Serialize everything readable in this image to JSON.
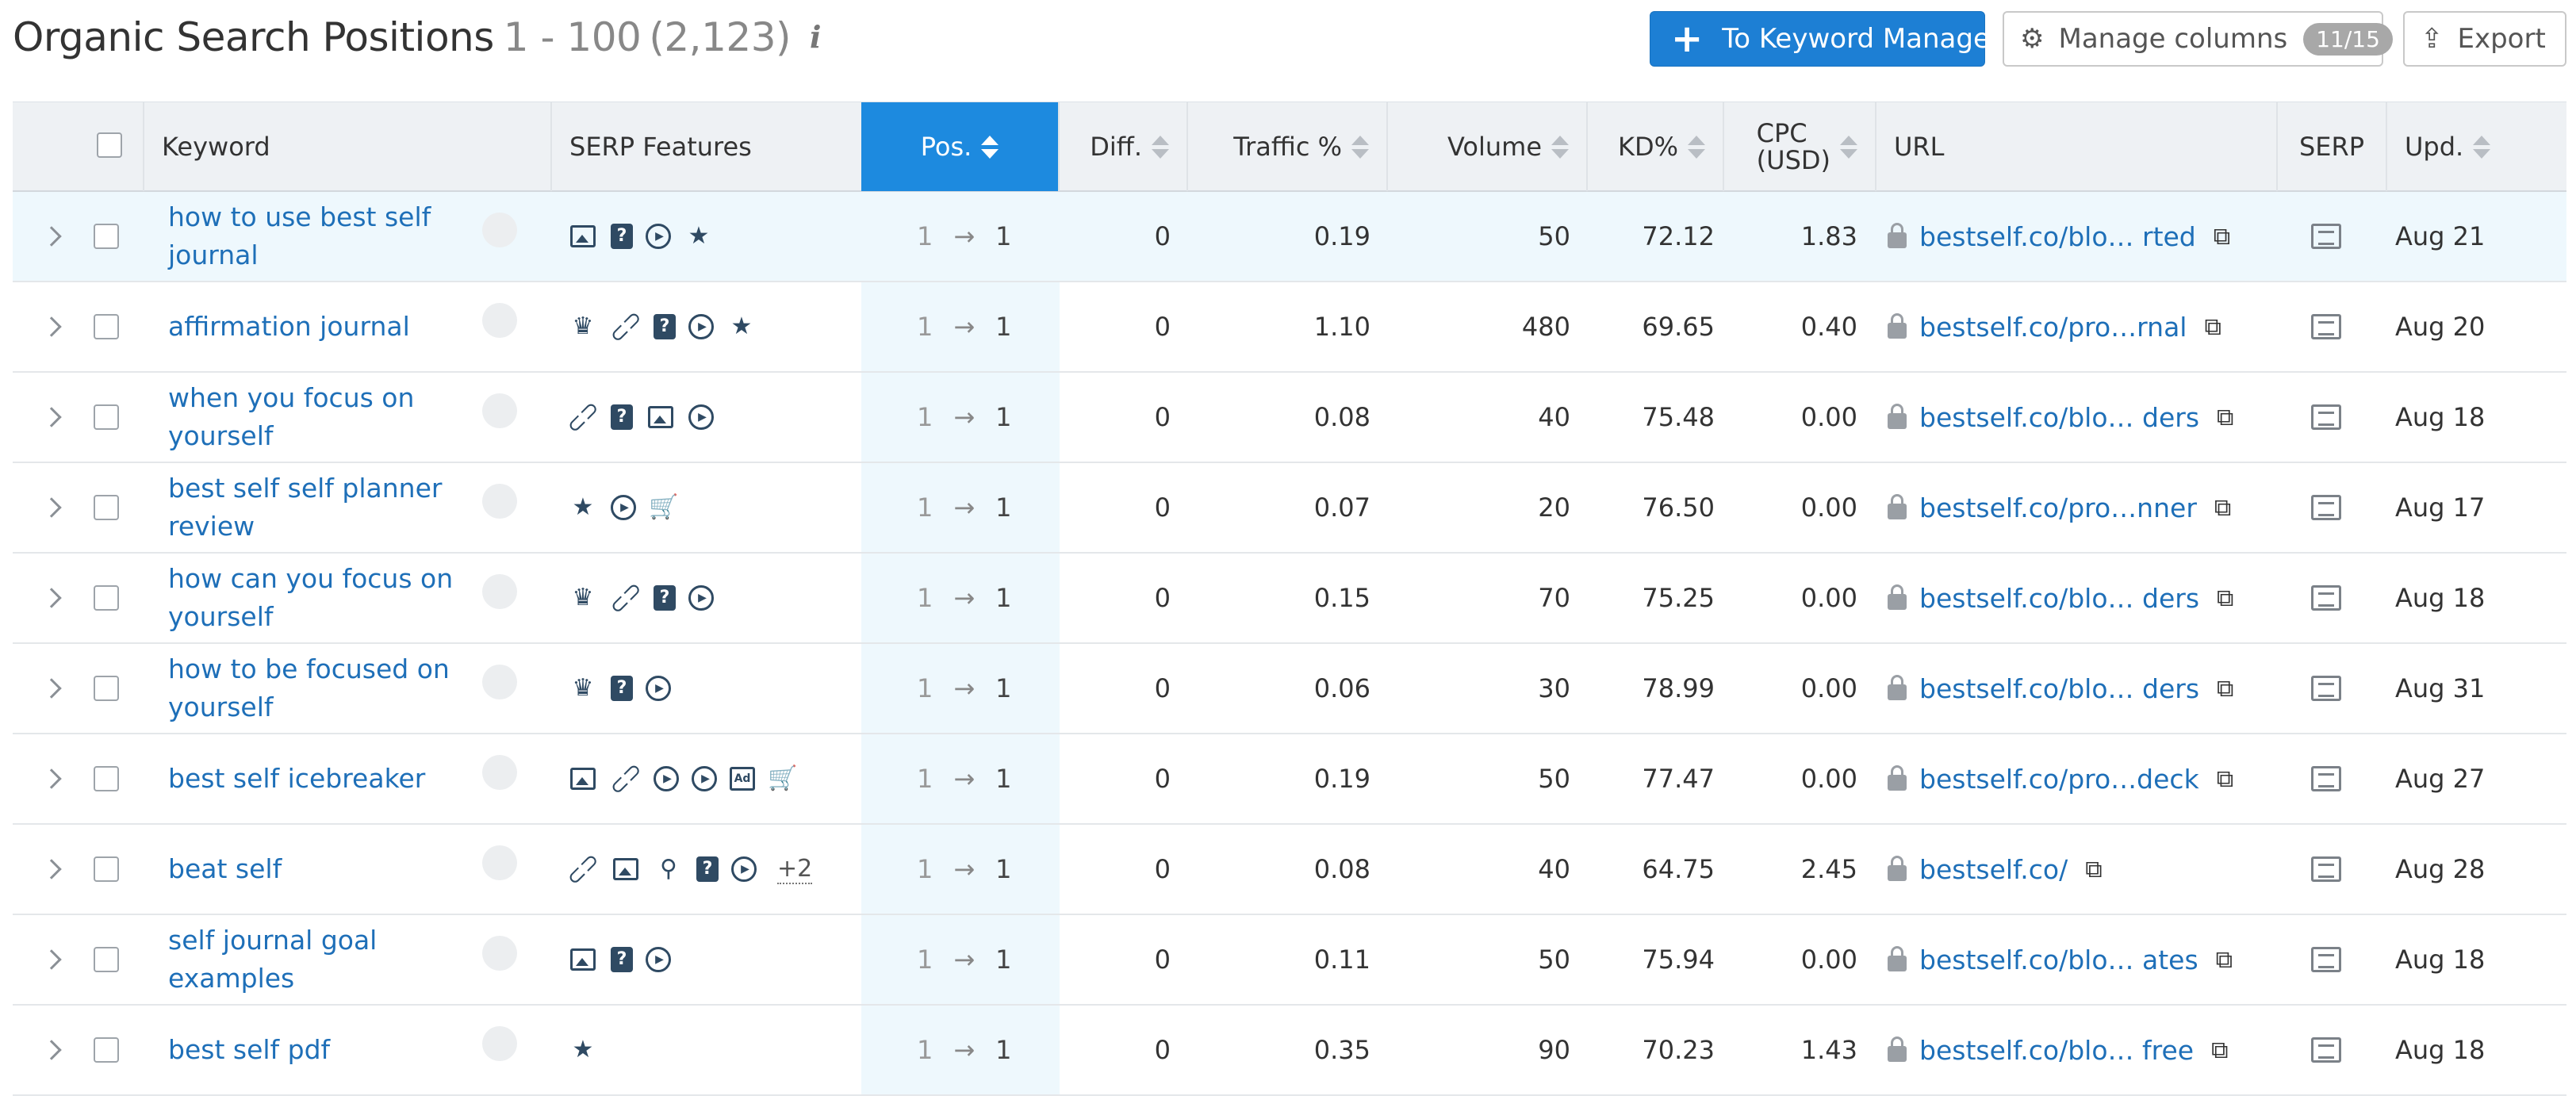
{
  "header": {
    "title": "Organic Search Positions",
    "range": "1 - 100",
    "total": "(2,123)",
    "info_icon": "info-icon",
    "keyword_manager_label": "To Keyword Manager",
    "manage_columns_label": "Manage columns",
    "columns_badge": "11/15",
    "export_label": "Export"
  },
  "columns": {
    "keyword": "Keyword",
    "serp_features": "SERP Features",
    "pos": "Pos.",
    "diff": "Diff.",
    "traffic": "Traffic %",
    "volume": "Volume",
    "kd": "KD%",
    "cpc_line1": "CPC",
    "cpc_line2": "(USD)",
    "url": "URL",
    "serp": "SERP",
    "upd": "Upd."
  },
  "rows": [
    {
      "kw1": "how to use best self",
      "kw2": "journal",
      "icons": [
        "image",
        "faq",
        "video",
        "star"
      ],
      "more": "",
      "pos_prev": "1",
      "pos": "1",
      "diff": "0",
      "traffic": "0.19",
      "volume": "50",
      "kd": "72.12",
      "cpc": "1.83",
      "url": "bestself.co/blo… rted",
      "upd": "Aug 21"
    },
    {
      "kw1": "affirmation journal",
      "kw2": "",
      "icons": [
        "crown",
        "link",
        "faq",
        "video",
        "star"
      ],
      "more": "",
      "pos_prev": "1",
      "pos": "1",
      "diff": "0",
      "traffic": "1.10",
      "volume": "480",
      "kd": "69.65",
      "cpc": "0.40",
      "url": "bestself.co/pro…rnal",
      "upd": "Aug 20"
    },
    {
      "kw1": "when you focus on",
      "kw2": "yourself",
      "icons": [
        "link",
        "faq",
        "image",
        "video"
      ],
      "more": "",
      "pos_prev": "1",
      "pos": "1",
      "diff": "0",
      "traffic": "0.08",
      "volume": "40",
      "kd": "75.48",
      "cpc": "0.00",
      "url": "bestself.co/blo… ders",
      "upd": "Aug 18"
    },
    {
      "kw1": "best self self planner",
      "kw2": "review",
      "icons": [
        "star",
        "video",
        "cart"
      ],
      "more": "",
      "pos_prev": "1",
      "pos": "1",
      "diff": "0",
      "traffic": "0.07",
      "volume": "20",
      "kd": "76.50",
      "cpc": "0.00",
      "url": "bestself.co/pro…nner",
      "upd": "Aug 17"
    },
    {
      "kw1": "how can you focus on",
      "kw2": "yourself",
      "icons": [
        "crown",
        "link",
        "faq",
        "video"
      ],
      "more": "",
      "pos_prev": "1",
      "pos": "1",
      "diff": "0",
      "traffic": "0.15",
      "volume": "70",
      "kd": "75.25",
      "cpc": "0.00",
      "url": "bestself.co/blo… ders",
      "upd": "Aug 18"
    },
    {
      "kw1": "how to be focused on",
      "kw2": "yourself",
      "icons": [
        "crown",
        "faq",
        "video"
      ],
      "more": "",
      "pos_prev": "1",
      "pos": "1",
      "diff": "0",
      "traffic": "0.06",
      "volume": "30",
      "kd": "78.99",
      "cpc": "0.00",
      "url": "bestself.co/blo… ders",
      "upd": "Aug 31"
    },
    {
      "kw1": "best self icebreaker",
      "kw2": "",
      "icons": [
        "image",
        "link",
        "video",
        "video",
        "ad",
        "cart"
      ],
      "more": "",
      "pos_prev": "1",
      "pos": "1",
      "diff": "0",
      "traffic": "0.19",
      "volume": "50",
      "kd": "77.47",
      "cpc": "0.00",
      "url": "bestself.co/pro…deck",
      "upd": "Aug 27"
    },
    {
      "kw1": "beat self",
      "kw2": "",
      "icons": [
        "link",
        "image",
        "pin",
        "faq",
        "video"
      ],
      "more": "+2",
      "pos_prev": "1",
      "pos": "1",
      "diff": "0",
      "traffic": "0.08",
      "volume": "40",
      "kd": "64.75",
      "cpc": "2.45",
      "url": "bestself.co/",
      "upd": "Aug 28"
    },
    {
      "kw1": "self journal goal examples",
      "kw2": "",
      "icons": [
        "image",
        "faq",
        "video"
      ],
      "more": "",
      "pos_prev": "1",
      "pos": "1",
      "diff": "0",
      "traffic": "0.11",
      "volume": "50",
      "kd": "75.94",
      "cpc": "0.00",
      "url": "bestself.co/blo… ates",
      "upd": "Aug 18"
    },
    {
      "kw1": "best self pdf",
      "kw2": "",
      "icons": [
        "star"
      ],
      "more": "",
      "pos_prev": "1",
      "pos": "1",
      "diff": "0",
      "traffic": "0.35",
      "volume": "90",
      "kd": "70.23",
      "cpc": "1.43",
      "url": "bestself.co/blo… free",
      "upd": "Aug 18"
    }
  ]
}
